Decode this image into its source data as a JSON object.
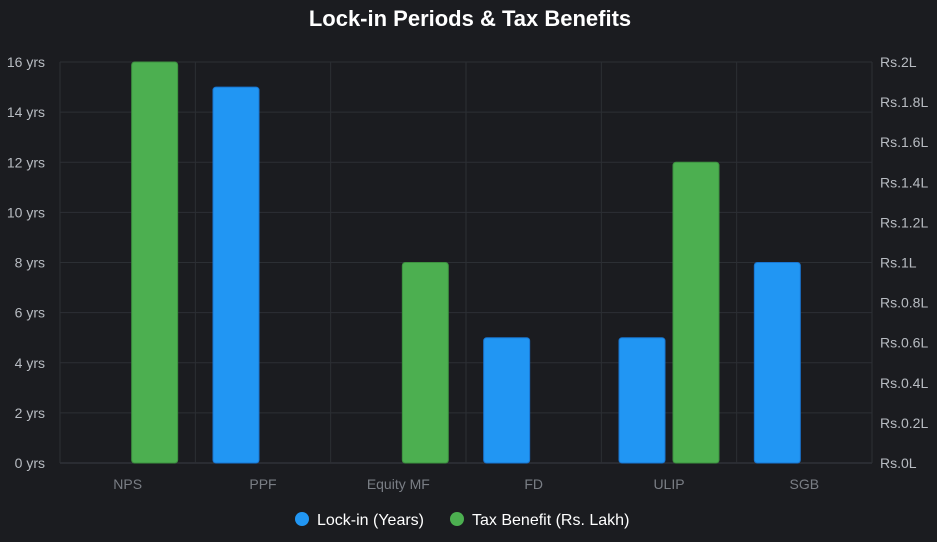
{
  "chart_data": {
    "type": "bar",
    "title": "Lock-in Periods & Tax Benefits",
    "categories": [
      "NPS",
      "PPF",
      "Equity MF",
      "FD",
      "ULIP",
      "SGB"
    ],
    "series": [
      {
        "name": "Lock-in (Years)",
        "values": [
          0,
          15,
          0,
          5,
          5,
          8
        ],
        "color": "#2196f3",
        "axis": "left"
      },
      {
        "name": "Tax Benefit (Rs. Lakh)",
        "values": [
          2,
          0,
          1,
          0,
          1.5,
          0
        ],
        "color": "#4caf50",
        "axis": "right"
      }
    ],
    "y_left": {
      "min": 0,
      "max": 16,
      "ticks": [
        0,
        2,
        4,
        6,
        8,
        10,
        12,
        14,
        16
      ],
      "tick_labels": [
        "0 yrs",
        "2 yrs",
        "4 yrs",
        "6 yrs",
        "8 yrs",
        "10 yrs",
        "12 yrs",
        "14 yrs",
        "16 yrs"
      ]
    },
    "y_right": {
      "min": 0,
      "max": 2,
      "ticks": [
        0,
        0.2,
        0.4,
        0.6,
        0.8,
        1,
        1.2,
        1.4,
        1.6,
        1.8,
        2
      ],
      "tick_labels": [
        "Rs.0L",
        "Rs.0.2L",
        "Rs.0.4L",
        "Rs.0.6L",
        "Rs.0.8L",
        "Rs.1L",
        "Rs.1.2L",
        "Rs.1.4L",
        "Rs.1.6L",
        "Rs.1.8L",
        "Rs.2L"
      ]
    },
    "grid": true,
    "legend_position": "bottom"
  }
}
